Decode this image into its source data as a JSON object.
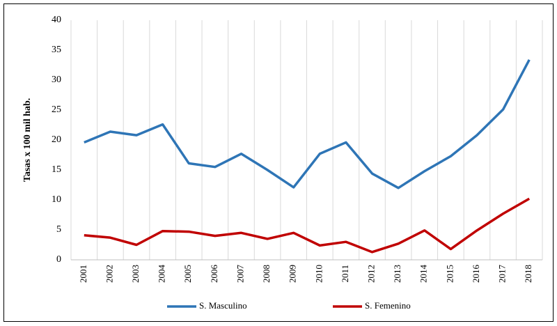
{
  "chart_data": {
    "type": "line",
    "y_label": "Tasas x 100 mil hab.",
    "categories": [
      "2001",
      "2002",
      "2003",
      "2004",
      "2005",
      "2006",
      "2007",
      "2008",
      "2009",
      "2010",
      "2011",
      "2012",
      "2013",
      "2014",
      "2015",
      "2016",
      "2017",
      "2018"
    ],
    "series": [
      {
        "name": "S. Masculino",
        "color": "#2e75b6",
        "values": [
          19.6,
          21.4,
          20.8,
          22.6,
          16.1,
          15.5,
          17.7,
          15.0,
          12.1,
          17.7,
          19.6,
          14.4,
          12.0,
          14.8,
          17.3,
          20.8,
          25.1,
          33.4
        ]
      },
      {
        "name": "S. Femenino",
        "color": "#c00000",
        "values": [
          4.1,
          3.7,
          2.5,
          4.8,
          4.7,
          4.0,
          4.5,
          3.5,
          4.5,
          2.4,
          3.0,
          1.3,
          2.7,
          4.9,
          1.8,
          4.9,
          7.7,
          10.2
        ]
      }
    ],
    "ylim": [
      0,
      40
    ],
    "yticks": [
      0,
      5,
      10,
      15,
      20,
      25,
      30,
      35,
      40
    ],
    "grid": "x",
    "legend": "bottom"
  }
}
